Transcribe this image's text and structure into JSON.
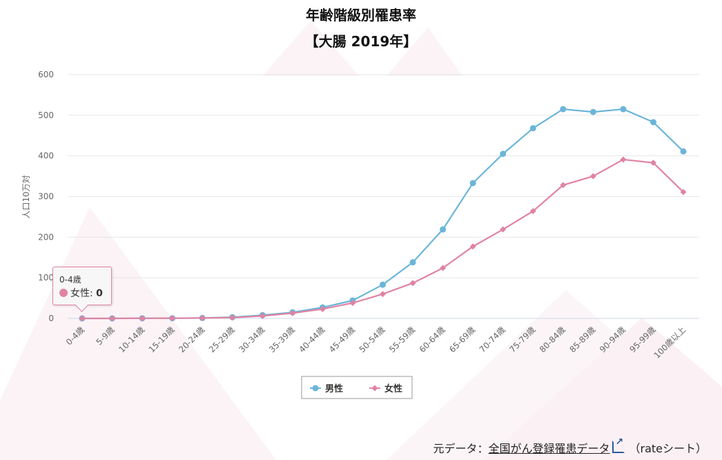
{
  "chart_data": {
    "type": "line",
    "title": "年齢階級別罹患率",
    "subtitle": "【大腸 2019年】",
    "ylabel": "人口10万対",
    "xlabel": "",
    "ylim": [
      0,
      600
    ],
    "yticks": [
      0,
      100,
      200,
      300,
      400,
      500,
      600
    ],
    "grid": true,
    "legend_position": "bottom-center",
    "categories": [
      "0-4歳",
      "5-9歳",
      "10-14歳",
      "15-19歳",
      "20-24歳",
      "25-29歳",
      "30-34歳",
      "35-39歳",
      "40-44歳",
      "45-49歳",
      "50-54歳",
      "55-59歳",
      "60-64歳",
      "65-69歳",
      "70-74歳",
      "75-79歳",
      "80-84歳",
      "85-89歳",
      "90-94歳",
      "95-99歳",
      "100歳以上"
    ],
    "series": [
      {
        "name": "男性",
        "color": "#6bb5d9",
        "marker": "circle",
        "values": [
          0,
          0,
          0.3,
          0.5,
          1,
          3,
          8,
          15,
          27,
          44,
          83,
          138,
          219,
          333,
          405,
          468,
          515,
          508,
          515,
          483,
          411
        ]
      },
      {
        "name": "女性",
        "color": "#e083a3",
        "marker": "diamond",
        "values": [
          0,
          0,
          0.3,
          0.5,
          1,
          2,
          6,
          13,
          23,
          38,
          60,
          87,
          124,
          177,
          219,
          264,
          328,
          350,
          391,
          383,
          311
        ]
      }
    ]
  },
  "tooltip": {
    "category": "0-4歳",
    "series": "女性",
    "value": "0",
    "label": "女性: "
  },
  "footer": {
    "prefix": "元データ：",
    "link": "全国がん登録罹患データ",
    "suffix": "（rateシート）"
  }
}
